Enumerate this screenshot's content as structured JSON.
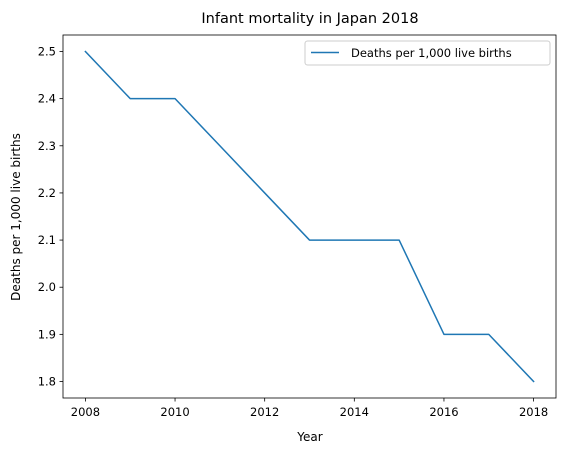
{
  "chart_data": {
    "type": "line",
    "title": "Infant mortality in Japan 2018",
    "xlabel": "Year",
    "ylabel": "Deaths per 1,000 live births",
    "x": [
      2008,
      2009,
      2010,
      2011,
      2012,
      2013,
      2014,
      2015,
      2016,
      2017,
      2018
    ],
    "series": [
      {
        "name": "Deaths per 1,000 live births",
        "values": [
          2.5,
          2.4,
          2.4,
          2.3,
          2.2,
          2.1,
          2.1,
          2.1,
          1.9,
          1.9,
          1.8
        ],
        "color": "#1f77b4"
      }
    ],
    "xlim": [
      2007.5,
      2018.5
    ],
    "ylim": [
      1.765,
      2.535
    ],
    "xticks": [
      2008,
      2010,
      2012,
      2014,
      2016,
      2018
    ],
    "yticks": [
      1.8,
      1.9,
      2.0,
      2.1,
      2.2,
      2.3,
      2.4,
      2.5
    ],
    "ytick_labels": [
      "1.8",
      "1.9",
      "2.0",
      "2.1",
      "2.2",
      "2.3",
      "2.4",
      "2.5"
    ],
    "grid": false,
    "legend_position": "top-right"
  }
}
